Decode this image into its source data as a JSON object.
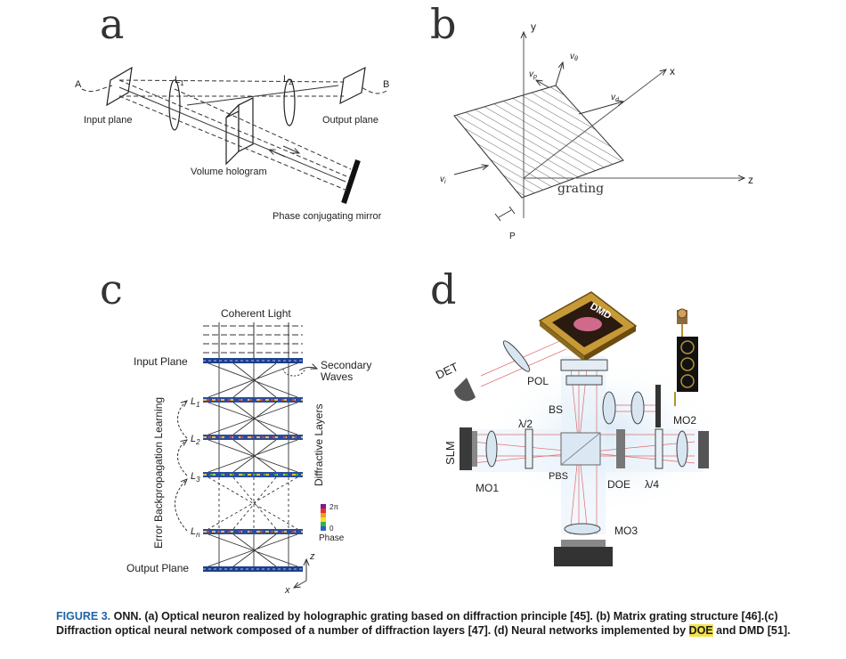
{
  "panels": {
    "a": {
      "letter": "a",
      "A": "A",
      "B": "B",
      "L1": "L",
      "L1_sub": "1",
      "L2": "L",
      "L2_sub": "2",
      "input_plane": "Input plane",
      "output_plane": "Output plane",
      "volume_hologram": "Volume hologram",
      "phase_mirror": "Phase conjugating mirror"
    },
    "b": {
      "letter": "b",
      "y": "y",
      "x": "x",
      "z": "z",
      "P": "P",
      "grating": "grating",
      "v_p": "v",
      "v_p_sub": "p",
      "v_theta": "v",
      "v_theta_sub": "θ",
      "v_d": "v",
      "v_d_sub": "d",
      "v_i": "v",
      "v_i_sub": "i"
    },
    "c": {
      "letter": "c",
      "coherent_light": "Coherent Light",
      "input_plane": "Input Plane",
      "secondary_waves_1": "Secondary",
      "secondary_waves_2": "Waves",
      "diffractive_layers": "Diffractive Layers",
      "error_backprop": "Error Backpropagation Learning",
      "L1": "L",
      "L1_sub": "1",
      "L2": "L",
      "L2_sub": "2",
      "L3": "L",
      "L3_sub": "3",
      "Ln": "L",
      "Ln_sub": "n",
      "phase_top": "2π",
      "phase_bottom": "0",
      "phase": "Phase",
      "output_plane": "Output Plane",
      "z": "z",
      "x": "x"
    },
    "d": {
      "letter": "d",
      "DMD": "DMD",
      "DET": "DET",
      "POL": "POL",
      "BS": "BS",
      "lambda2": "λ/2",
      "SLM": "SLM",
      "MO1": "MO1",
      "PBS": "PBS",
      "DOE": "DOE",
      "lambda4": "λ/4",
      "MO2": "MO2",
      "MO3": "MO3"
    }
  },
  "caption": {
    "figure": "FIGURE 3.",
    "text_1": "ONN. (a) Optical neuron realized by holographic grating based on diffraction principle [45]. (b) Matrix grating structure [46].(c) Diffraction optical neural network composed of a number of diffraction layers [47]. (d) Neural networks implemented by ",
    "highlight": "DOE",
    "text_2": " and DMD [51]."
  },
  "colors": {
    "caption_figure": "#1f63a8",
    "highlight": "#f2e44a"
  }
}
